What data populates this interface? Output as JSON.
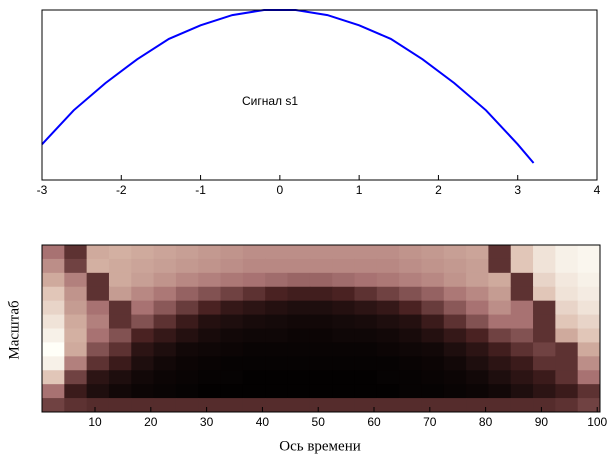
{
  "chart_data": [
    {
      "type": "line",
      "annotation": "Сигнал s1",
      "x": [
        -3,
        -2.6,
        -2.2,
        -1.8,
        -1.4,
        -1,
        -0.6,
        -0.2,
        0.2,
        0.6,
        1,
        1.4,
        1.8,
        2.2,
        2.6,
        3,
        3.2
      ],
      "values": [
        0.21,
        0.41,
        0.57,
        0.71,
        0.83,
        0.91,
        0.97,
        1.0,
        1.0,
        0.97,
        0.91,
        0.83,
        0.71,
        0.57,
        0.41,
        0.21,
        0.1
      ],
      "color": "#0000ff",
      "xlim": [
        -3,
        4
      ],
      "xticks": [
        -3,
        -2,
        -1,
        0,
        1,
        2,
        3,
        4
      ],
      "ylim": [
        0,
        1
      ]
    },
    {
      "type": "heatmap",
      "xlabel": "Ось времени",
      "ylabel": "Масштаб",
      "xlim": [
        0.5,
        100.5
      ],
      "xticks": [
        10,
        20,
        30,
        40,
        50,
        60,
        70,
        80,
        90,
        100
      ],
      "colormap": [
        "#000000",
        "#4a2222",
        "#a87272",
        "#d9b8a8",
        "#fffff8"
      ],
      "x": [
        2.5,
        6.5,
        10.5,
        14.5,
        18.5,
        22.5,
        26.5,
        30.5,
        34.5,
        38.5,
        42.5,
        46.5,
        50.5,
        54.5,
        58.5,
        62.5,
        66.5,
        70.5,
        74.5,
        78.5,
        82.5,
        86.5,
        90.5,
        94.5,
        98.5
      ],
      "z": [
        [
          0.5,
          0.3,
          0.7,
          0.72,
          0.7,
          0.68,
          0.66,
          0.64,
          0.62,
          0.6,
          0.6,
          0.6,
          0.6,
          0.6,
          0.6,
          0.6,
          0.62,
          0.64,
          0.66,
          0.68,
          0.3,
          0.8,
          0.9,
          0.95,
          0.97
        ],
        [
          0.6,
          0.35,
          0.72,
          0.7,
          0.68,
          0.66,
          0.64,
          0.62,
          0.6,
          0.58,
          0.58,
          0.58,
          0.58,
          0.58,
          0.58,
          0.58,
          0.6,
          0.62,
          0.64,
          0.66,
          0.3,
          0.8,
          0.9,
          0.95,
          0.97
        ],
        [
          0.7,
          0.55,
          0.3,
          0.7,
          0.66,
          0.62,
          0.58,
          0.55,
          0.52,
          0.5,
          0.48,
          0.46,
          0.46,
          0.48,
          0.5,
          0.52,
          0.55,
          0.58,
          0.62,
          0.66,
          0.7,
          0.3,
          0.85,
          0.92,
          0.95
        ],
        [
          0.8,
          0.62,
          0.3,
          0.65,
          0.58,
          0.52,
          0.45,
          0.4,
          0.35,
          0.3,
          0.25,
          0.22,
          0.22,
          0.25,
          0.3,
          0.35,
          0.4,
          0.45,
          0.52,
          0.58,
          0.65,
          0.3,
          0.8,
          0.9,
          0.93
        ],
        [
          0.85,
          0.65,
          0.5,
          0.3,
          0.5,
          0.42,
          0.33,
          0.25,
          0.18,
          0.15,
          0.12,
          0.1,
          0.1,
          0.12,
          0.15,
          0.18,
          0.25,
          0.33,
          0.42,
          0.5,
          0.6,
          0.5,
          0.3,
          0.85,
          0.9
        ],
        [
          0.9,
          0.7,
          0.55,
          0.3,
          0.4,
          0.3,
          0.2,
          0.12,
          0.1,
          0.08,
          0.07,
          0.06,
          0.06,
          0.07,
          0.08,
          0.1,
          0.12,
          0.2,
          0.3,
          0.4,
          0.5,
          0.5,
          0.3,
          0.8,
          0.85
        ],
        [
          0.95,
          0.72,
          0.5,
          0.4,
          0.25,
          0.18,
          0.12,
          0.08,
          0.06,
          0.05,
          0.05,
          0.04,
          0.04,
          0.05,
          0.05,
          0.06,
          0.08,
          0.12,
          0.18,
          0.25,
          0.35,
          0.4,
          0.3,
          0.7,
          0.8
        ],
        [
          1.0,
          0.7,
          0.4,
          0.3,
          0.15,
          0.1,
          0.06,
          0.05,
          0.04,
          0.03,
          0.03,
          0.03,
          0.03,
          0.03,
          0.03,
          0.04,
          0.05,
          0.06,
          0.1,
          0.15,
          0.22,
          0.3,
          0.35,
          0.3,
          0.7
        ],
        [
          0.95,
          0.55,
          0.3,
          0.2,
          0.1,
          0.06,
          0.04,
          0.03,
          0.02,
          0.02,
          0.02,
          0.02,
          0.02,
          0.02,
          0.02,
          0.02,
          0.03,
          0.04,
          0.06,
          0.1,
          0.15,
          0.2,
          0.3,
          0.3,
          0.6
        ],
        [
          0.8,
          0.35,
          0.15,
          0.1,
          0.06,
          0.04,
          0.03,
          0.02,
          0.02,
          0.01,
          0.01,
          0.01,
          0.01,
          0.01,
          0.01,
          0.02,
          0.02,
          0.03,
          0.04,
          0.06,
          0.1,
          0.15,
          0.2,
          0.3,
          0.5
        ],
        [
          0.5,
          0.2,
          0.1,
          0.06,
          0.04,
          0.03,
          0.02,
          0.01,
          0.01,
          0.01,
          0.01,
          0.01,
          0.01,
          0.01,
          0.01,
          0.01,
          0.02,
          0.02,
          0.03,
          0.04,
          0.06,
          0.1,
          0.15,
          0.2,
          0.3
        ],
        [
          0.35,
          0.3,
          0.28,
          0.28,
          0.28,
          0.28,
          0.28,
          0.28,
          0.28,
          0.28,
          0.28,
          0.28,
          0.28,
          0.28,
          0.28,
          0.28,
          0.28,
          0.28,
          0.28,
          0.28,
          0.28,
          0.28,
          0.28,
          0.3,
          0.35
        ]
      ]
    }
  ]
}
